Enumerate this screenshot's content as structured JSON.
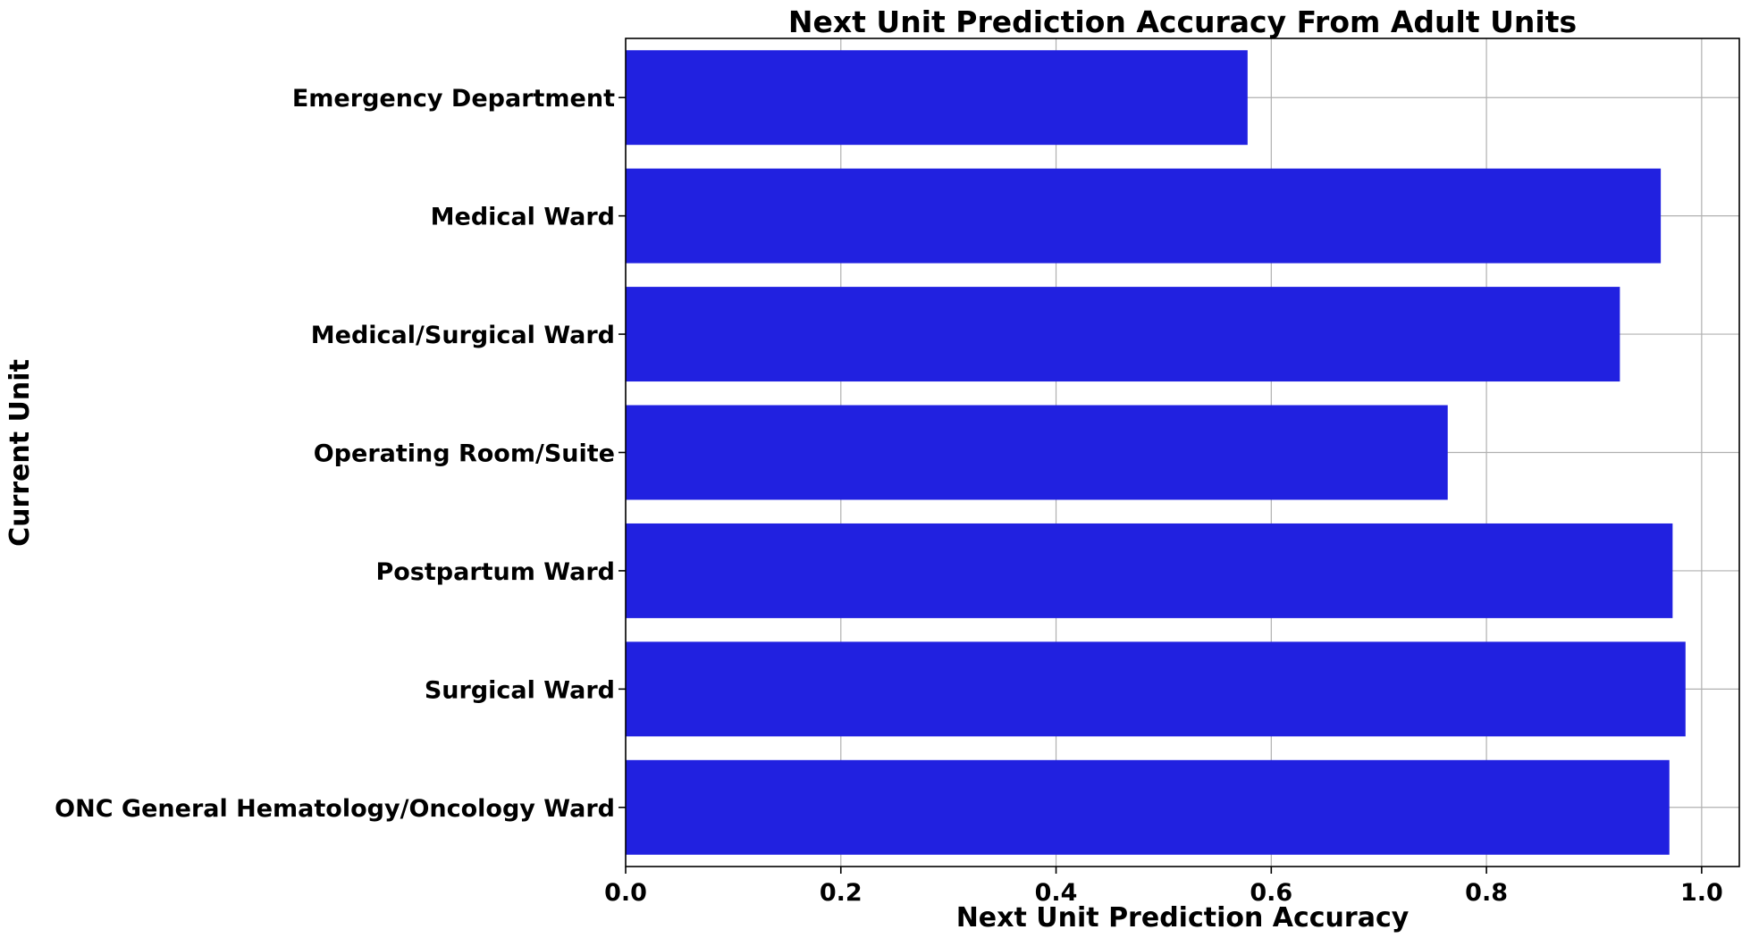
{
  "chart_data": {
    "type": "bar",
    "orientation": "horizontal",
    "title": "Next Unit Prediction Accuracy From Adult Units",
    "xlabel": "Next Unit Prediction Accuracy",
    "ylabel": "Current Unit",
    "categories": [
      "Emergency Department",
      "Medical Ward",
      "Medical/Surgical Ward",
      "Operating Room/Suite",
      "Postpartum Ward",
      "Surgical Ward",
      "ONC General Hematology/Oncology Ward"
    ],
    "values": [
      0.578,
      0.962,
      0.924,
      0.764,
      0.973,
      0.985,
      0.97
    ],
    "xlim": [
      0.0,
      1.035
    ],
    "xticks": [
      0.0,
      0.2,
      0.4,
      0.6,
      0.8,
      1.0
    ],
    "xtick_labels": [
      "0.0",
      "0.2",
      "0.4",
      "0.6",
      "0.8",
      "1.0"
    ],
    "grid": true,
    "bar_color": "#2121e0"
  }
}
